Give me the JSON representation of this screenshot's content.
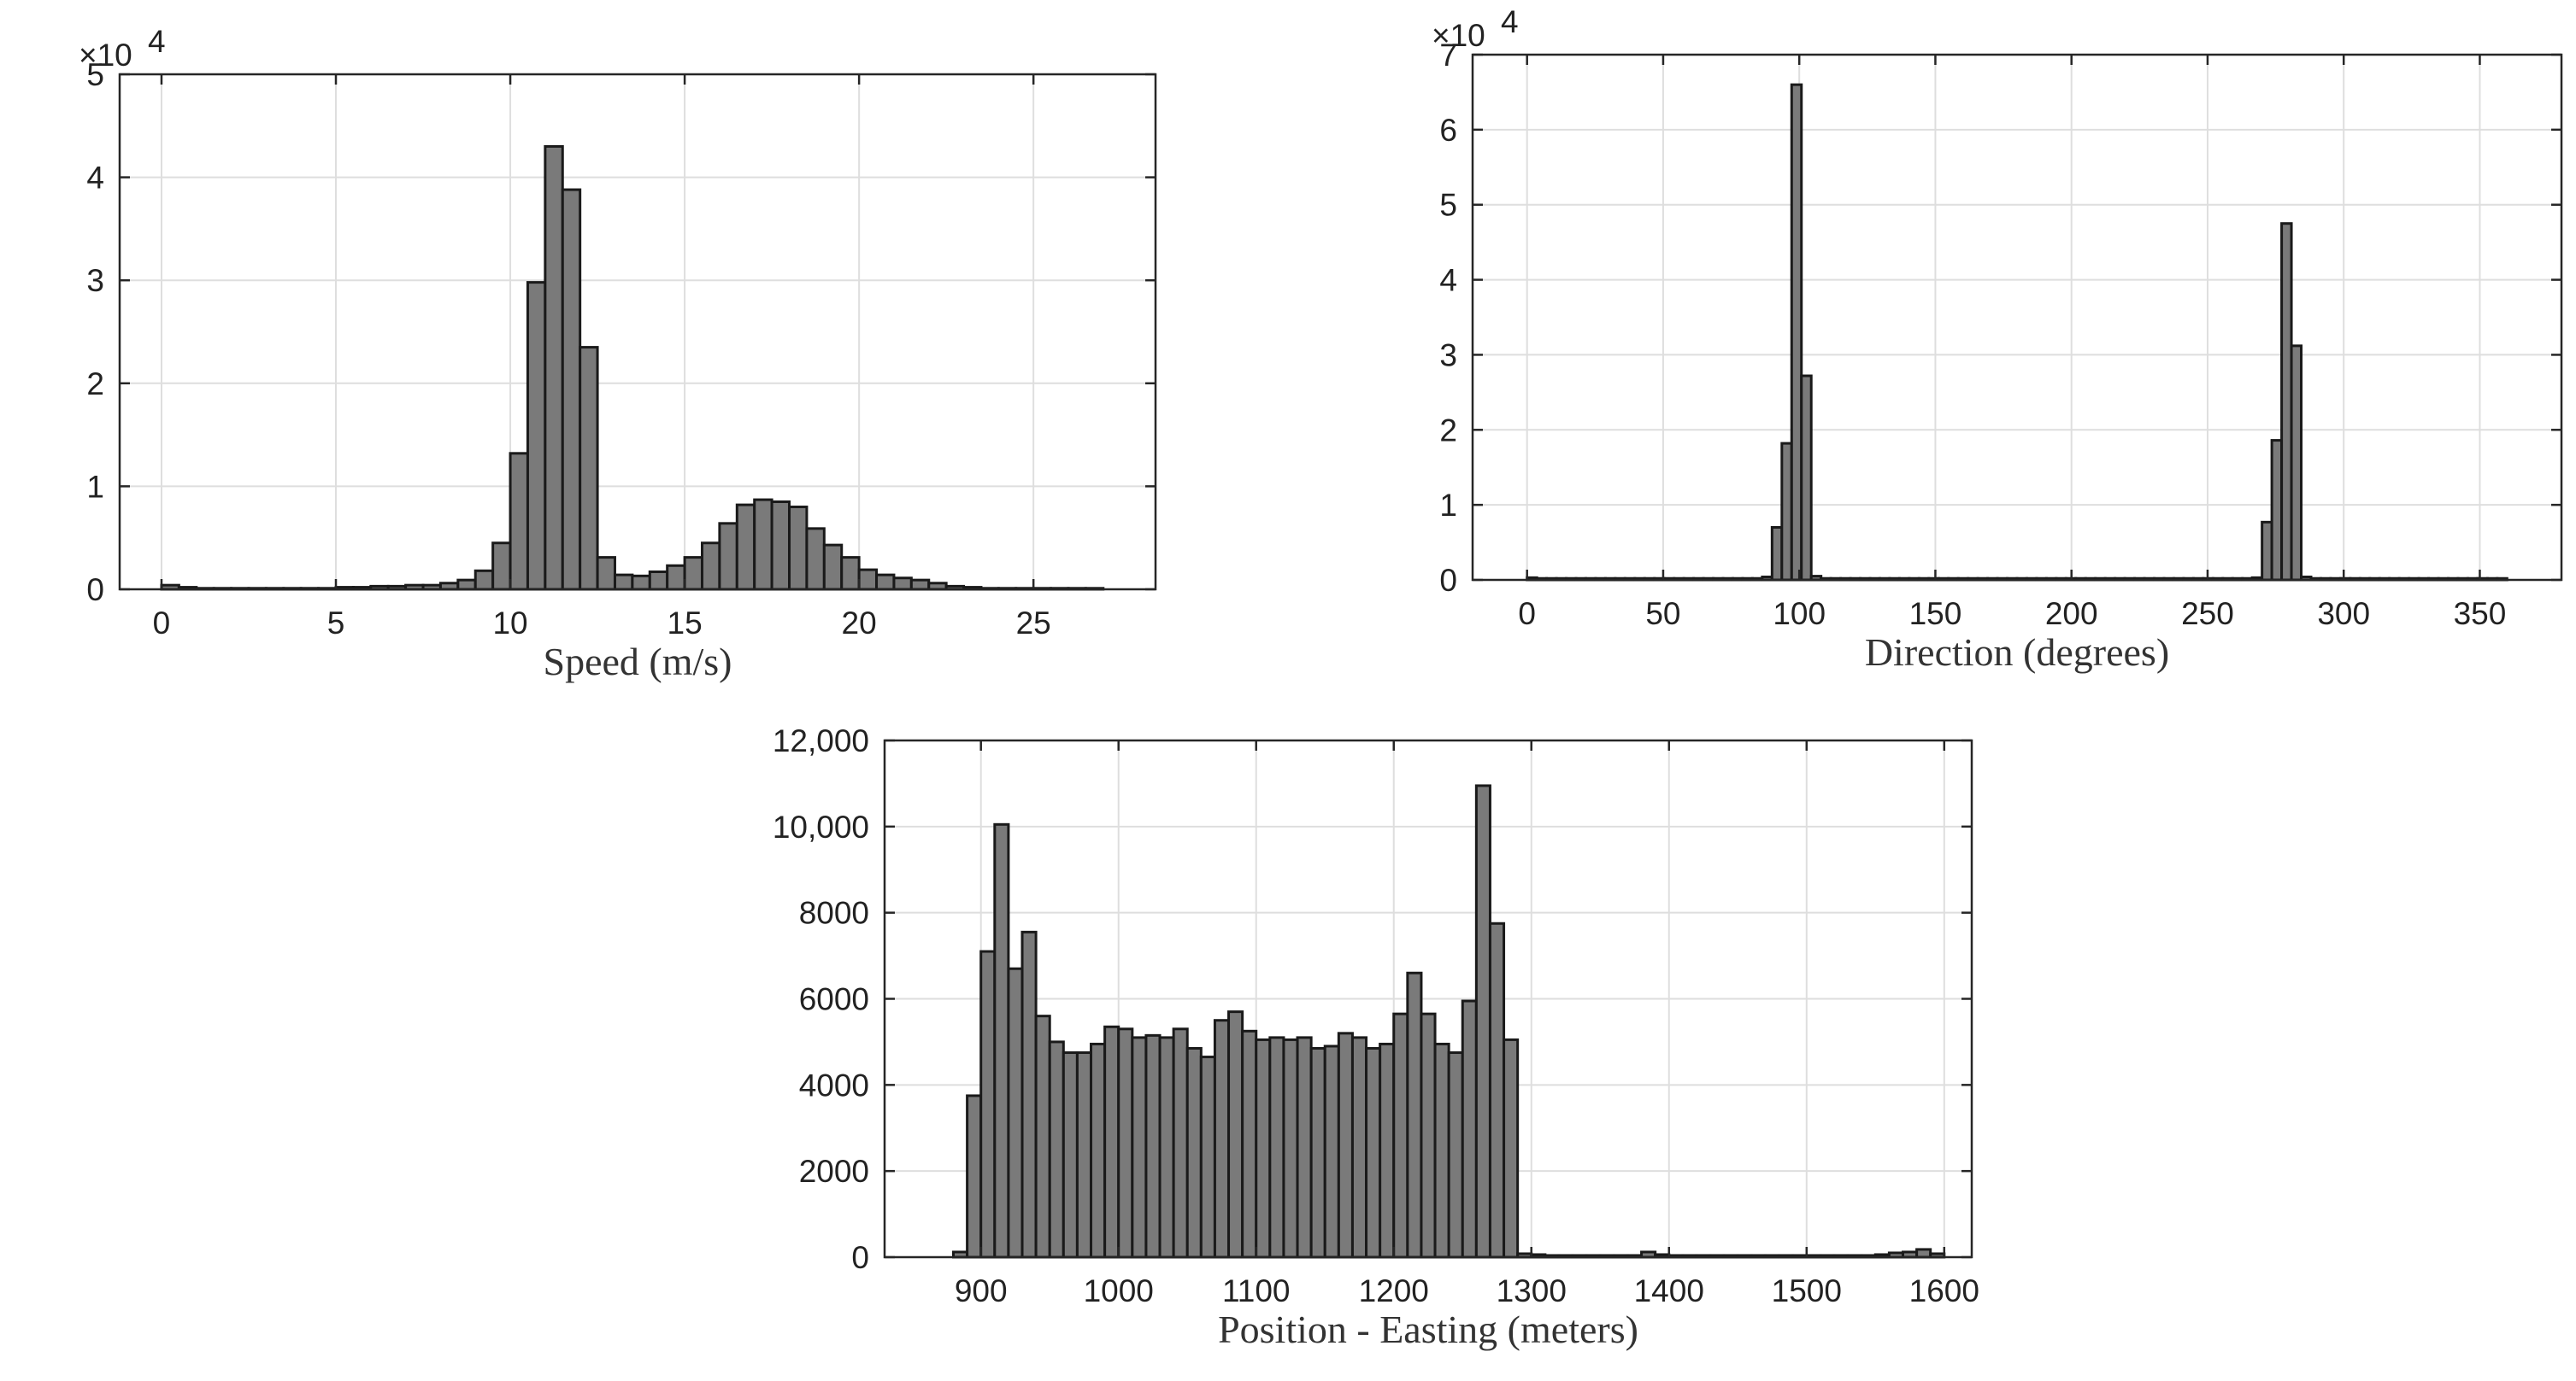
{
  "chart_data": [
    {
      "type": "bar",
      "xlabel": "Speed (m/s)",
      "ylabel": "",
      "xlim": [
        -1.2,
        28.5
      ],
      "ylim": [
        0,
        50000
      ],
      "xticks": [
        0,
        5,
        10,
        15,
        20,
        25
      ],
      "xtick_labels": [
        "0",
        "5",
        "10",
        "15",
        "20",
        "25"
      ],
      "yticks": [
        0,
        10000,
        20000,
        30000,
        40000,
        50000
      ],
      "ytick_labels": [
        "0",
        "1",
        "2",
        "3",
        "4",
        "5"
      ],
      "exponent_label": "×10",
      "exponent_power": "4",
      "grid": true,
      "bar_color": "#7a7a7a",
      "bin_width": 0.5,
      "x": [
        0,
        0.5,
        1,
        1.5,
        2,
        2.5,
        3,
        3.5,
        4,
        4.5,
        5,
        5.5,
        6,
        6.5,
        7,
        7.5,
        8,
        8.5,
        9,
        9.5,
        10,
        10.5,
        11,
        11.5,
        12,
        12.5,
        13,
        13.5,
        14,
        14.5,
        15,
        15.5,
        16,
        16.5,
        17,
        17.5,
        18,
        18.5,
        19,
        19.5,
        20,
        20.5,
        21,
        21.5,
        22,
        22.5,
        23,
        23.5,
        24,
        24.5,
        25,
        25.5,
        26,
        26.5
      ],
      "values": [
        400,
        200,
        100,
        100,
        100,
        100,
        100,
        100,
        100,
        100,
        200,
        200,
        300,
        300,
        400,
        400,
        600,
        900,
        1800,
        4500,
        13200,
        29800,
        43000,
        38800,
        23500,
        3100,
        1400,
        1300,
        1700,
        2300,
        3100,
        4500,
        6400,
        8200,
        8700,
        8500,
        8000,
        5900,
        4300,
        3100,
        1900,
        1400,
        1100,
        900,
        600,
        300,
        200,
        100,
        100,
        100,
        100,
        100,
        100,
        100
      ]
    },
    {
      "type": "bar",
      "xlabel": "Direction (degrees)",
      "ylabel": "",
      "xlim": [
        -20,
        380
      ],
      "ylim": [
        0,
        70000
      ],
      "xticks": [
        0,
        50,
        100,
        150,
        200,
        250,
        300,
        350
      ],
      "xtick_labels": [
        "0",
        "50",
        "100",
        "150",
        "200",
        "250",
        "300",
        "350"
      ],
      "yticks": [
        0,
        10000,
        20000,
        30000,
        40000,
        50000,
        60000,
        70000
      ],
      "ytick_labels": [
        "0",
        "1",
        "2",
        "3",
        "4",
        "5",
        "6",
        "7"
      ],
      "exponent_label": "×10",
      "exponent_power": "4",
      "grid": true,
      "bar_color": "#7a7a7a",
      "bin_width": 3.6,
      "x": [
        0,
        3.6,
        7.2,
        10.8,
        14.4,
        18,
        21.6,
        25.2,
        28.8,
        32.4,
        36,
        39.6,
        43.2,
        46.8,
        50.4,
        54,
        57.6,
        61.2,
        64.8,
        68.4,
        72,
        75.6,
        79.2,
        82.8,
        86.4,
        90,
        93.6,
        97.2,
        100.8,
        104.4,
        108,
        111.6,
        115.2,
        118.8,
        122.4,
        126,
        129.6,
        133.2,
        136.8,
        140.4,
        144,
        147.6,
        151.2,
        154.8,
        158.4,
        162,
        165.6,
        169.2,
        172.8,
        176.4,
        180,
        183.6,
        187.2,
        190.8,
        194.4,
        198,
        201.6,
        205.2,
        208.8,
        212.4,
        216,
        219.6,
        223.2,
        226.8,
        230.4,
        234,
        237.6,
        241.2,
        244.8,
        248.4,
        252,
        255.6,
        259.2,
        262.8,
        266.4,
        270,
        273.6,
        277.2,
        280.8,
        284.4,
        288,
        291.6,
        295.2,
        298.8,
        302.4,
        306,
        309.6,
        313.2,
        316.8,
        320.4,
        324,
        327.6,
        331.2,
        334.8,
        338.4,
        342,
        345.6,
        349.2,
        352.8,
        356.4
      ],
      "values": [
        300,
        200,
        200,
        200,
        200,
        200,
        200,
        200,
        200,
        200,
        200,
        200,
        200,
        200,
        200,
        200,
        200,
        200,
        200,
        200,
        200,
        200,
        200,
        200,
        400,
        7000,
        18200,
        66000,
        27200,
        500,
        200,
        200,
        200,
        200,
        200,
        200,
        200,
        200,
        200,
        200,
        200,
        200,
        200,
        200,
        200,
        200,
        200,
        200,
        200,
        200,
        200,
        200,
        200,
        200,
        200,
        200,
        200,
        200,
        200,
        200,
        200,
        200,
        200,
        200,
        200,
        200,
        200,
        200,
        200,
        200,
        200,
        200,
        200,
        200,
        300,
        7700,
        18600,
        47500,
        31200,
        400,
        200,
        200,
        200,
        200,
        200,
        200,
        200,
        200,
        200,
        200,
        200,
        200,
        200,
        200,
        200,
        200,
        200,
        200,
        200,
        200
      ]
    },
    {
      "type": "bar",
      "xlabel": "Position - Easting (meters)",
      "ylabel": "",
      "xlim": [
        830,
        1620
      ],
      "ylim": [
        0,
        12000
      ],
      "xticks": [
        900,
        1000,
        1100,
        1200,
        1300,
        1400,
        1500,
        1600
      ],
      "xtick_labels": [
        "900",
        "1000",
        "1100",
        "1200",
        "1300",
        "1400",
        "1500",
        "1600"
      ],
      "yticks": [
        0,
        2000,
        4000,
        6000,
        8000,
        10000,
        12000
      ],
      "ytick_labels": [
        "0",
        "2000",
        "4000",
        "6000",
        "8000",
        "10,000",
        "12,000"
      ],
      "grid": true,
      "bar_color": "#7a7a7a",
      "bin_width": 10,
      "x": [
        880,
        890,
        900,
        910,
        920,
        930,
        940,
        950,
        960,
        970,
        980,
        990,
        1000,
        1010,
        1020,
        1030,
        1040,
        1050,
        1060,
        1070,
        1080,
        1090,
        1100,
        1110,
        1120,
        1130,
        1140,
        1150,
        1160,
        1170,
        1180,
        1190,
        1200,
        1210,
        1220,
        1230,
        1240,
        1250,
        1260,
        1270,
        1280,
        1290,
        1300,
        1310,
        1320,
        1330,
        1340,
        1350,
        1360,
        1370,
        1380,
        1390,
        1400,
        1410,
        1420,
        1430,
        1440,
        1450,
        1460,
        1470,
        1480,
        1490,
        1500,
        1510,
        1520,
        1530,
        1540,
        1550,
        1560,
        1570,
        1580,
        1590
      ],
      "values": [
        120,
        3750,
        7100,
        10050,
        6700,
        7550,
        5600,
        5000,
        4750,
        4750,
        4950,
        5350,
        5300,
        5100,
        5150,
        5100,
        5300,
        4850,
        4650,
        5500,
        5700,
        5250,
        5050,
        5100,
        5050,
        5100,
        4850,
        4900,
        5200,
        5100,
        4850,
        4950,
        5650,
        6600,
        5650,
        4950,
        4750,
        5950,
        10950,
        7750,
        5050,
        80,
        60,
        40,
        40,
        40,
        40,
        40,
        40,
        40,
        120,
        60,
        40,
        40,
        40,
        40,
        40,
        40,
        40,
        40,
        40,
        40,
        40,
        40,
        40,
        40,
        40,
        60,
        100,
        120,
        180,
        80
      ]
    }
  ]
}
